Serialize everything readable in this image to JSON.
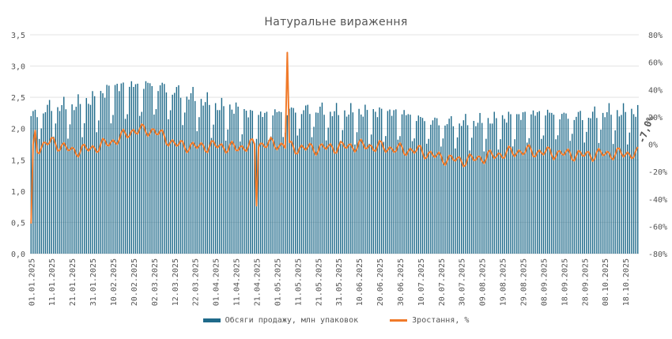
{
  "chart_data": {
    "type": "bar+line",
    "title": "Натуральне вираження",
    "left_axis": {
      "ticks": [
        "0,0",
        "0,5",
        "1,0",
        "1,5",
        "2,0",
        "2,5",
        "3,0",
        "3,5"
      ],
      "ylim": [
        0,
        3.5
      ]
    },
    "right_axis": {
      "ticks": [
        "-80%",
        "-60%",
        "-40%",
        "-20%",
        "0%",
        "20%",
        "40%",
        "60%",
        "80%"
      ],
      "ylim": [
        -80,
        80
      ]
    },
    "x_labels": [
      "01.01.2025",
      "11.01.2025",
      "21.01.2025",
      "31.01.2025",
      "10.02.2025",
      "20.02.2025",
      "02.03.2025",
      "12.03.2025",
      "22.03.2025",
      "01.04.2025",
      "11.04.2025",
      "21.04.2025",
      "01.05.2025",
      "11.05.2025",
      "21.05.2025",
      "31.05.2025",
      "10.06.2025",
      "20.06.2025",
      "30.06.2025",
      "10.07.2025",
      "20.07.2025",
      "30.07.2025",
      "09.08.2025",
      "19.08.2025",
      "29.08.2025",
      "08.09.2025",
      "18.09.2025",
      "28.09.2025",
      "08.10.2025",
      "18.10.2025"
    ],
    "last_value_label": "-7,0%",
    "series": [
      {
        "name": "Обсяги продажу, млн упаковок",
        "type": "bar",
        "color": "#1f6a8a",
        "period_means": [
          2.2,
          2.35,
          2.35,
          2.45,
          2.65,
          2.68,
          2.7,
          2.6,
          2.5,
          2.35,
          2.3,
          2.2,
          2.25,
          2.3,
          2.3,
          2.25,
          2.25,
          2.25,
          2.25,
          2.15,
          2.1,
          2.1,
          2.1,
          2.15,
          2.2,
          2.25,
          2.2,
          2.2,
          2.25,
          2.25
        ]
      },
      {
        "name": "Зростання, %",
        "type": "line",
        "color": "#f07a2a",
        "period_means": [
          -5,
          2,
          -5,
          -3,
          2,
          10,
          10,
          0,
          -2,
          -1,
          -3,
          0,
          0,
          -3,
          -3,
          -2,
          -1,
          -2,
          -4,
          -5,
          -10,
          -12,
          -10,
          -7,
          -5,
          -6,
          -7,
          -8,
          -7,
          -7
        ],
        "notable_points": [
          {
            "date": "01.01.2025",
            "value": -58
          },
          {
            "date": "03.01.2025",
            "value": 10
          },
          {
            "date": "21.04.2025",
            "value": -45
          },
          {
            "date": "06.05.2025",
            "value": 67
          }
        ]
      }
    ]
  }
}
